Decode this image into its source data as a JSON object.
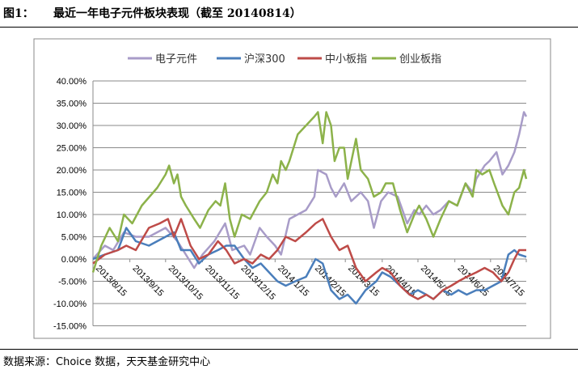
{
  "figure_label": "图1：",
  "title": "最近一年电子元件板块表现（截至 20140814）",
  "source": "数据来源：Choice 数据，天天基金研究中心",
  "chart_data": {
    "type": "line",
    "title": "",
    "xlabel": "",
    "ylabel": "",
    "ylim": [
      -15,
      40
    ],
    "yticks": [
      "40.00%",
      "35.00%",
      "30.00%",
      "25.00%",
      "20.00%",
      "15.00%",
      "10.00%",
      "5.00%",
      "0.00%",
      "-5.00%",
      "-10.00%",
      "-15.00%"
    ],
    "xticks": [
      "2013/8/15",
      "2013/9/15",
      "2013/10/15",
      "2013/11/15",
      "2013/12/15",
      "2014/1/15",
      "2014/2/15",
      "2014/3/15",
      "2014/4/15",
      "2014/5/15",
      "2014/6/15",
      "2014/7/15"
    ],
    "xrange": [
      "2013-08-15",
      "2014-08-14"
    ],
    "grid": "horizontal",
    "legend": "top",
    "series": [
      {
        "name": "电子元件",
        "color": "#a89cc8",
        "points": [
          [
            "2013-08-15",
            0
          ],
          [
            "2013-08-25",
            3
          ],
          [
            "2013-09-01",
            2
          ],
          [
            "2013-09-10",
            6
          ],
          [
            "2013-09-20",
            5
          ],
          [
            "2013-10-01",
            5
          ],
          [
            "2013-10-15",
            7
          ],
          [
            "2013-10-25",
            4
          ],
          [
            "2013-11-01",
            1
          ],
          [
            "2013-11-08",
            -2
          ],
          [
            "2013-11-15",
            1
          ],
          [
            "2013-11-25",
            4
          ],
          [
            "2013-12-04",
            8
          ],
          [
            "2013-12-10",
            2
          ],
          [
            "2013-12-20",
            3
          ],
          [
            "2013-12-25",
            1
          ],
          [
            "2014-01-02",
            7
          ],
          [
            "2014-01-08",
            5
          ],
          [
            "2014-01-15",
            3
          ],
          [
            "2014-01-20",
            1
          ],
          [
            "2014-01-27",
            9
          ],
          [
            "2014-02-03",
            10
          ],
          [
            "2014-02-10",
            11
          ],
          [
            "2014-02-17",
            14
          ],
          [
            "2014-02-20",
            20
          ],
          [
            "2014-02-27",
            19
          ],
          [
            "2014-03-03",
            16
          ],
          [
            "2014-03-07",
            14
          ],
          [
            "2014-03-14",
            17
          ],
          [
            "2014-03-20",
            13
          ],
          [
            "2014-03-28",
            15
          ],
          [
            "2014-04-03",
            13
          ],
          [
            "2014-04-08",
            7
          ],
          [
            "2014-04-14",
            13
          ],
          [
            "2014-04-20",
            15
          ],
          [
            "2014-04-28",
            14
          ],
          [
            "2014-05-06",
            8
          ],
          [
            "2014-05-12",
            11
          ],
          [
            "2014-05-16",
            10
          ],
          [
            "2014-05-22",
            12
          ],
          [
            "2014-05-28",
            10
          ],
          [
            "2014-06-03",
            11
          ],
          [
            "2014-06-10",
            13
          ],
          [
            "2014-06-17",
            12
          ],
          [
            "2014-06-24",
            17
          ],
          [
            "2014-06-30",
            15
          ],
          [
            "2014-07-03",
            18
          ],
          [
            "2014-07-10",
            21
          ],
          [
            "2014-07-14",
            22
          ],
          [
            "2014-07-20",
            24
          ],
          [
            "2014-07-25",
            19
          ],
          [
            "2014-07-30",
            21
          ],
          [
            "2014-08-04",
            24
          ],
          [
            "2014-08-08",
            28
          ],
          [
            "2014-08-12",
            33
          ],
          [
            "2014-08-14",
            32
          ]
        ]
      },
      {
        "name": "沪深300",
        "color": "#4a7ebb",
        "points": [
          [
            "2013-08-15",
            0
          ],
          [
            "2013-08-25",
            1
          ],
          [
            "2013-09-05",
            2
          ],
          [
            "2013-09-12",
            7
          ],
          [
            "2013-09-20",
            4
          ],
          [
            "2013-10-01",
            3
          ],
          [
            "2013-10-15",
            5
          ],
          [
            "2013-10-22",
            6
          ],
          [
            "2013-10-28",
            2
          ],
          [
            "2013-11-05",
            2
          ],
          [
            "2013-11-12",
            -1
          ],
          [
            "2013-11-20",
            1
          ],
          [
            "2013-11-28",
            2
          ],
          [
            "2013-12-05",
            3
          ],
          [
            "2013-12-12",
            3
          ],
          [
            "2013-12-20",
            0
          ],
          [
            "2013-12-27",
            -2
          ],
          [
            "2014-01-03",
            -1
          ],
          [
            "2014-01-10",
            -3
          ],
          [
            "2014-01-17",
            -5
          ],
          [
            "2014-01-24",
            -6
          ],
          [
            "2014-02-01",
            -5
          ],
          [
            "2014-02-10",
            -4
          ],
          [
            "2014-02-18",
            0
          ],
          [
            "2014-02-24",
            -1
          ],
          [
            "2014-03-03",
            -7
          ],
          [
            "2014-03-10",
            -9
          ],
          [
            "2014-03-17",
            -8
          ],
          [
            "2014-03-24",
            -10
          ],
          [
            "2014-04-01",
            -7
          ],
          [
            "2014-04-10",
            -5
          ],
          [
            "2014-04-15",
            -3
          ],
          [
            "2014-04-22",
            -4
          ],
          [
            "2014-04-30",
            -6
          ],
          [
            "2014-05-08",
            -8
          ],
          [
            "2014-05-15",
            -7
          ],
          [
            "2014-05-22",
            -8
          ],
          [
            "2014-05-28",
            -9
          ],
          [
            "2014-06-05",
            -7
          ],
          [
            "2014-06-12",
            -8
          ],
          [
            "2014-06-18",
            -7
          ],
          [
            "2014-06-25",
            -8
          ],
          [
            "2014-07-03",
            -7
          ],
          [
            "2014-07-10",
            -7
          ],
          [
            "2014-07-17",
            -6
          ],
          [
            "2014-07-24",
            -5
          ],
          [
            "2014-07-30",
            1
          ],
          [
            "2014-08-04",
            2
          ],
          [
            "2014-08-08",
            1
          ],
          [
            "2014-08-14",
            0.5
          ]
        ]
      },
      {
        "name": "中小板指",
        "color": "#be4b48",
        "points": [
          [
            "2013-08-15",
            -1
          ],
          [
            "2013-08-25",
            1
          ],
          [
            "2013-09-05",
            2
          ],
          [
            "2013-09-12",
            3
          ],
          [
            "2013-09-20",
            2
          ],
          [
            "2013-10-01",
            7
          ],
          [
            "2013-10-10",
            8
          ],
          [
            "2013-10-17",
            9
          ],
          [
            "2013-10-22",
            5
          ],
          [
            "2013-10-28",
            9
          ],
          [
            "2013-11-05",
            3
          ],
          [
            "2013-11-12",
            0
          ],
          [
            "2013-11-20",
            1
          ],
          [
            "2013-11-28",
            4
          ],
          [
            "2013-12-05",
            2
          ],
          [
            "2013-12-12",
            -1
          ],
          [
            "2013-12-20",
            0
          ],
          [
            "2013-12-27",
            -1
          ],
          [
            "2014-01-03",
            1
          ],
          [
            "2014-01-10",
            0
          ],
          [
            "2014-01-17",
            2
          ],
          [
            "2014-01-24",
            5
          ],
          [
            "2014-02-01",
            4
          ],
          [
            "2014-02-10",
            6
          ],
          [
            "2014-02-18",
            8
          ],
          [
            "2014-02-24",
            9
          ],
          [
            "2014-03-03",
            5
          ],
          [
            "2014-03-10",
            2
          ],
          [
            "2014-03-17",
            3
          ],
          [
            "2014-03-24",
            -2
          ],
          [
            "2014-04-01",
            -5
          ],
          [
            "2014-04-10",
            -3
          ],
          [
            "2014-04-15",
            -2
          ],
          [
            "2014-04-22",
            -3
          ],
          [
            "2014-04-30",
            -6
          ],
          [
            "2014-05-08",
            -8
          ],
          [
            "2014-05-15",
            -9
          ],
          [
            "2014-05-22",
            -8
          ],
          [
            "2014-05-28",
            -9
          ],
          [
            "2014-06-05",
            -7
          ],
          [
            "2014-06-12",
            -6
          ],
          [
            "2014-06-18",
            -5
          ],
          [
            "2014-06-25",
            -4
          ],
          [
            "2014-07-03",
            -3
          ],
          [
            "2014-07-10",
            -2
          ],
          [
            "2014-07-17",
            -3
          ],
          [
            "2014-07-24",
            -5
          ],
          [
            "2014-07-30",
            -3
          ],
          [
            "2014-08-04",
            0
          ],
          [
            "2014-08-08",
            2
          ],
          [
            "2014-08-14",
            2
          ]
        ]
      },
      {
        "name": "创业板指",
        "color": "#8cb24a",
        "points": [
          [
            "2013-08-15",
            -3
          ],
          [
            "2013-08-22",
            3
          ],
          [
            "2013-08-29",
            7
          ],
          [
            "2013-09-05",
            4
          ],
          [
            "2013-09-10",
            10
          ],
          [
            "2013-09-17",
            8
          ],
          [
            "2013-09-25",
            12
          ],
          [
            "2013-10-08",
            16
          ],
          [
            "2013-10-15",
            19
          ],
          [
            "2013-10-18",
            21
          ],
          [
            "2013-10-22",
            17
          ],
          [
            "2013-10-25",
            19
          ],
          [
            "2013-10-28",
            14
          ],
          [
            "2013-11-01",
            12
          ],
          [
            "2013-11-08",
            9
          ],
          [
            "2013-11-13",
            7
          ],
          [
            "2013-11-20",
            11
          ],
          [
            "2013-11-26",
            13
          ],
          [
            "2013-11-30",
            12
          ],
          [
            "2013-12-04",
            17
          ],
          [
            "2013-12-08",
            9
          ],
          [
            "2013-12-12",
            5
          ],
          [
            "2013-12-18",
            10
          ],
          [
            "2013-12-25",
            9
          ],
          [
            "2014-01-02",
            13
          ],
          [
            "2014-01-08",
            15
          ],
          [
            "2014-01-13",
            19
          ],
          [
            "2014-01-17",
            17
          ],
          [
            "2014-01-20",
            22
          ],
          [
            "2014-01-24",
            20
          ],
          [
            "2014-01-27",
            22
          ],
          [
            "2014-02-03",
            28
          ],
          [
            "2014-02-10",
            30
          ],
          [
            "2014-02-17",
            32
          ],
          [
            "2014-02-20",
            33
          ],
          [
            "2014-02-24",
            26
          ],
          [
            "2014-02-27",
            33
          ],
          [
            "2014-03-03",
            30
          ],
          [
            "2014-03-06",
            22
          ],
          [
            "2014-03-10",
            25
          ],
          [
            "2014-03-14",
            25
          ],
          [
            "2014-03-17",
            18
          ],
          [
            "2014-03-24",
            27
          ],
          [
            "2014-03-28",
            20
          ],
          [
            "2014-04-03",
            18
          ],
          [
            "2014-04-08",
            14
          ],
          [
            "2014-04-14",
            15
          ],
          [
            "2014-04-18",
            17
          ],
          [
            "2014-04-24",
            17
          ],
          [
            "2014-04-30",
            11
          ],
          [
            "2014-05-06",
            6
          ],
          [
            "2014-05-12",
            10
          ],
          [
            "2014-05-16",
            12
          ],
          [
            "2014-05-22",
            9
          ],
          [
            "2014-05-28",
            5
          ],
          [
            "2014-06-03",
            9
          ],
          [
            "2014-06-10",
            13
          ],
          [
            "2014-06-17",
            12
          ],
          [
            "2014-06-24",
            17
          ],
          [
            "2014-06-30",
            14
          ],
          [
            "2014-07-03",
            20
          ],
          [
            "2014-07-08",
            19
          ],
          [
            "2014-07-14",
            20
          ],
          [
            "2014-07-18",
            17
          ],
          [
            "2014-07-25",
            12
          ],
          [
            "2014-07-30",
            10
          ],
          [
            "2014-08-04",
            15
          ],
          [
            "2014-08-08",
            16
          ],
          [
            "2014-08-12",
            20
          ],
          [
            "2014-08-14",
            18
          ]
        ]
      }
    ]
  }
}
